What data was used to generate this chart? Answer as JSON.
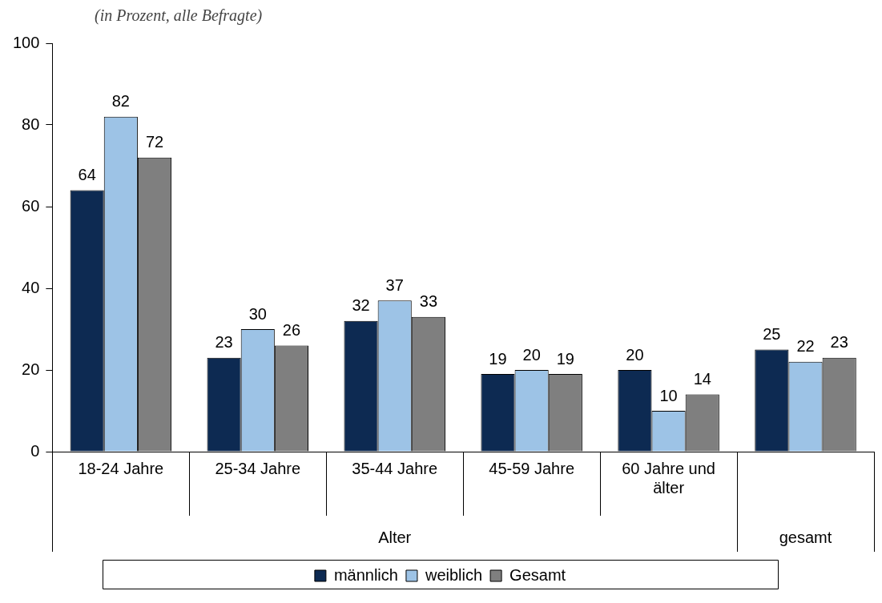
{
  "chart_data": {
    "type": "bar",
    "subtitle": "(in Prozent, alle Befragte)",
    "categories": [
      "18-24 Jahre",
      "25-34 Jahre",
      "35-44 Jahre",
      "45-59 Jahre",
      "60 Jahre und älter",
      null
    ],
    "series": [
      {
        "name": "männlich",
        "color": "#0d2a52",
        "values": [
          64,
          23,
          32,
          19,
          20,
          25
        ]
      },
      {
        "name": "weiblich",
        "color": "#9dc3e6",
        "values": [
          82,
          30,
          37,
          20,
          10,
          22
        ]
      },
      {
        "name": "Gesamt",
        "color": "#7f7f7f",
        "values": [
          72,
          26,
          33,
          19,
          14,
          23
        ]
      }
    ],
    "annotations": [
      "Alter",
      "gesamt"
    ],
    "ylim": [
      0,
      100
    ],
    "yticks": [
      0,
      20,
      40,
      60,
      80,
      100
    ],
    "grid": false,
    "legend": "bottom",
    "data_labels": true
  }
}
